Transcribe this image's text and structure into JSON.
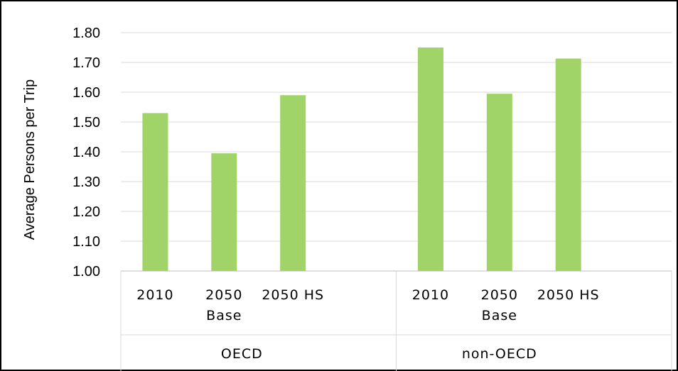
{
  "chart_data": {
    "type": "bar",
    "ylabel": "Average Persons per Trip",
    "ylim": [
      1.0,
      1.8
    ],
    "yticks": [
      "1.00",
      "1.10",
      "1.20",
      "1.30",
      "1.40",
      "1.50",
      "1.60",
      "1.70",
      "1.80"
    ],
    "grid": true,
    "bar_color": "#a0d468",
    "groups": [
      {
        "name": "OECD",
        "categories": [
          {
            "label": [
              "2010"
            ],
            "value": 1.53
          },
          {
            "label": [
              "2050",
              "Base"
            ],
            "value": 1.395
          },
          {
            "label": [
              "2050 HS"
            ],
            "value": 1.59
          }
        ]
      },
      {
        "name": "non-OECD",
        "categories": [
          {
            "label": [
              "2010"
            ],
            "value": 1.75
          },
          {
            "label": [
              "2050",
              "Base"
            ],
            "value": 1.595
          },
          {
            "label": [
              "2050 HS"
            ],
            "value": 1.713
          }
        ]
      }
    ]
  }
}
